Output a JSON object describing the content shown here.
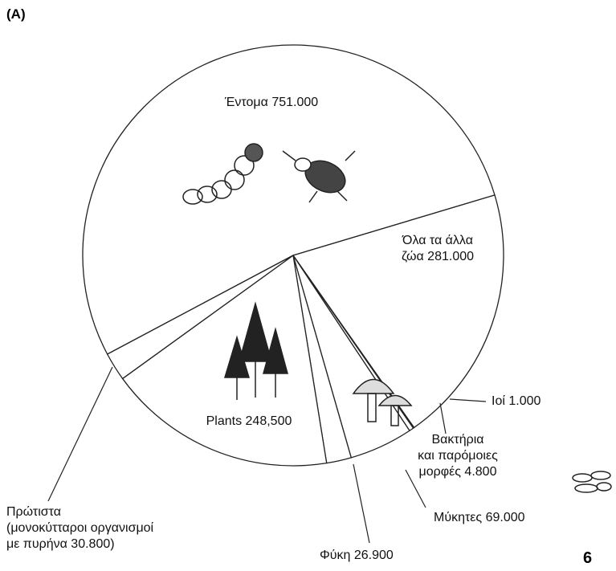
{
  "chart_data": {
    "type": "pie",
    "title": "(A)",
    "annotation": "6",
    "categories": [
      "Έντομα",
      "Όλα τα άλλα\nζώα",
      "Ιοί ",
      "Βακτήρια\nκαι παρόμοιες\nμορφές",
      "Μύκητες",
      "Φύκη",
      "Plants",
      "Πρώτιστα\n(μονοκύτταροι οργανισμοί\nμε πυρήνα"
    ],
    "values": [
      751000,
      281000,
      1000,
      4800,
      69000,
      26900,
      248500,
      30800
    ],
    "value_labels": [
      "751.000",
      "281.000",
      "1.000",
      "4.800",
      "69.000",
      "26.900",
      "248,500",
      "30.800)"
    ],
    "color": "#ffffff"
  }
}
